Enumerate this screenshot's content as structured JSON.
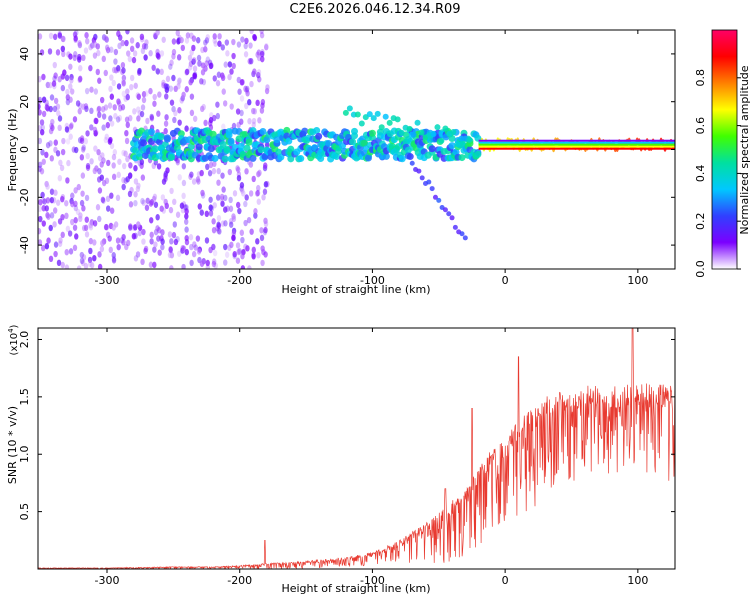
{
  "title": "C2E6.2026.046.12.34.R09",
  "colors": {
    "snr_line": "#e83a30",
    "colormap": [
      "#ffffff",
      "#7b00ff",
      "#3040ff",
      "#00c8ff",
      "#00e0a0",
      "#40ff00",
      "#ffff00",
      "#ff8000",
      "#ff0000",
      "#ff0066"
    ]
  },
  "chart_data": [
    {
      "type": "heatmap",
      "title": "C2E6.2026.046.12.34.R09",
      "xlabel": "Height of straight line (km)",
      "ylabel": "Frequency (Hz)",
      "xlim": [
        -352,
        128
      ],
      "ylim": [
        -50,
        50
      ],
      "x_ticks": [
        -300,
        -200,
        -100,
        0,
        100
      ],
      "y_ticks": [
        -40,
        -20,
        0,
        20,
        40
      ],
      "grid": false,
      "colorbar": {
        "label": "Normalized spectral amplitude",
        "range": [
          0,
          1
        ],
        "ticks": [
          "0.0",
          "0.2",
          "0.4",
          "0.6",
          "0.8"
        ],
        "tick_values": [
          0,
          0.2,
          0.4,
          0.6,
          0.8
        ]
      },
      "features": [
        {
          "name": "noise",
          "x_range": [
            -352,
            -180
          ],
          "y_range": [
            -50,
            50
          ],
          "amplitude": 0.1
        },
        {
          "name": "carrier",
          "x_range": [
            -280,
            128
          ],
          "y_center": 2,
          "amplitude_range": [
            0.2,
            0.9
          ]
        },
        {
          "name": "side-lobe",
          "x_range": [
            -120,
            -25
          ],
          "y_center": 15,
          "amplitude": 0.3
        },
        {
          "name": "tail",
          "x_range": [
            -70,
            -28
          ],
          "y_range": [
            -5,
            -40
          ],
          "amplitude": 0.15
        }
      ]
    },
    {
      "type": "line",
      "xlabel": "Height of straight line (km)",
      "ylabel": "SNR (10 * v/v)",
      "y_scale_label": "(x10",
      "y_scale_exp": "4",
      "xlim": [
        -352,
        128
      ],
      "ylim": [
        0,
        2.1
      ],
      "x_ticks": [
        -300,
        -200,
        -100,
        0,
        100
      ],
      "y_ticks": [
        0.5,
        1.0,
        1.5,
        2.0
      ],
      "y_tick_labels": [
        "0.5",
        "1.0",
        "1.5",
        "2.0"
      ],
      "grid": false,
      "series": [
        {
          "x": [
            -352,
            -300,
            -250,
            -220,
            -200,
            -180,
            -160,
            -140,
            -120,
            -100,
            -80,
            -60,
            -50,
            -40,
            -30,
            -20,
            -10,
            0,
            10,
            20,
            30,
            40,
            60,
            80,
            100,
            128
          ],
          "y": [
            0.01,
            0.01,
            0.02,
            0.02,
            0.03,
            0.05,
            0.06,
            0.08,
            0.1,
            0.15,
            0.25,
            0.4,
            0.5,
            0.6,
            0.7,
            0.9,
            1.05,
            1.15,
            1.3,
            1.4,
            1.5,
            1.55,
            1.6,
            1.6,
            1.62,
            1.62
          ],
          "y_low": [
            0.0,
            0.0,
            0.0,
            0.0,
            0.0,
            0.0,
            0.0,
            0.01,
            0.02,
            0.03,
            0.05,
            0.05,
            0.05,
            0.05,
            0.1,
            0.2,
            0.3,
            0.4,
            0.45,
            0.5,
            0.6,
            0.7,
            0.8,
            0.8,
            0.75,
            0.75
          ],
          "spikes": [
            [
              -181,
              0.25
            ],
            [
              -45,
              0.7
            ],
            [
              -25,
              1.4
            ],
            [
              10,
              1.85
            ],
            [
              96,
              2.12
            ]
          ]
        }
      ]
    }
  ]
}
